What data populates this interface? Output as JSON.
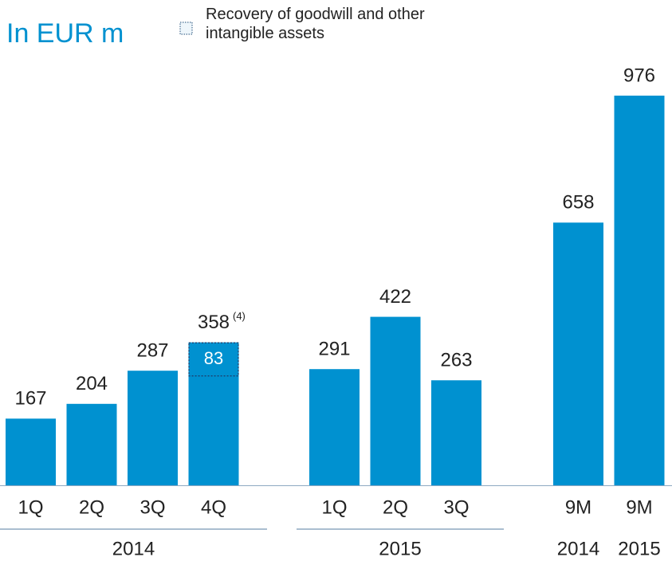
{
  "chart_data": {
    "type": "bar",
    "title": "In EUR m",
    "color": "#0091d0",
    "highlight_name": "Recovery of goodwill and other intangible assets",
    "groups": [
      {
        "label": "2014",
        "categories": [
          "1Q",
          "2Q",
          "3Q",
          "4Q"
        ],
        "values": [
          167,
          204,
          287,
          358
        ],
        "highlight_values": [
          null,
          null,
          null,
          83
        ],
        "notes": [
          null,
          null,
          null,
          "(4)"
        ]
      },
      {
        "label": "2015",
        "categories": [
          "1Q",
          "2Q",
          "3Q"
        ],
        "values": [
          291,
          422,
          263
        ]
      },
      {
        "categories": [
          "9M",
          "9M"
        ],
        "sublabels": [
          "2014",
          "2015"
        ],
        "values": [
          658,
          976
        ]
      }
    ]
  }
}
